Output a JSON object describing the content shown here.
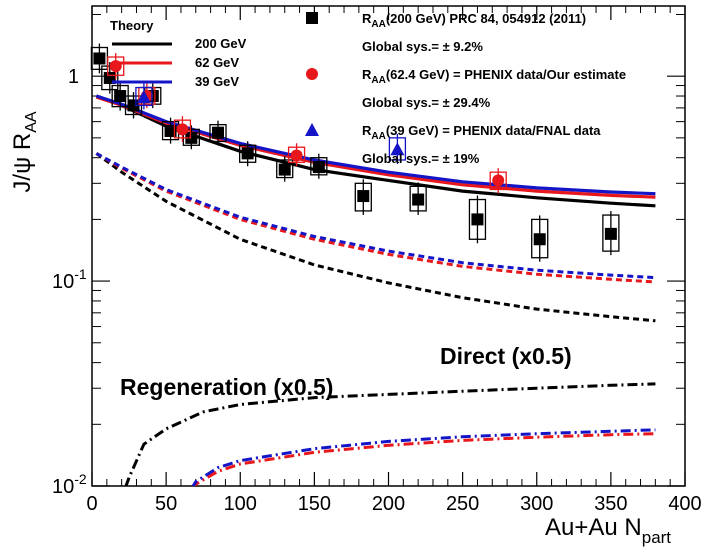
{
  "chart_data": {
    "type": "scatter",
    "xlabel_main": "Au+Au N",
    "xlabel_sub": "part",
    "ylabel_main": "J/ψ R",
    "ylabel_sub": "AA",
    "xlim": [
      0,
      400
    ],
    "ylim": [
      0.01,
      2.2
    ],
    "yscale": "log",
    "grid": false,
    "x_ticks": [
      0,
      50,
      100,
      150,
      200,
      250,
      300,
      350,
      400
    ],
    "y_ticks": [
      {
        "value": 0.01,
        "base": "10",
        "exp": "-2"
      },
      {
        "value": 0.1,
        "base": "10",
        "exp": "-1"
      },
      {
        "value": 1,
        "base": "1",
        "exp": ""
      }
    ],
    "theory_legend": {
      "title": "Theory",
      "entries": [
        {
          "label": "200 GeV",
          "color": "#000000"
        },
        {
          "label": "62 GeV",
          "color": "#e8171b"
        },
        {
          "label": "39 GeV",
          "color": "#1515c8"
        }
      ]
    },
    "data_legend": [
      {
        "marker": "square",
        "color": "#000000",
        "label_main": "R",
        "label_sub": "AA",
        "label_rest": "(200 GeV) PRC 84, 054912 (2011)",
        "sys": "Global sys.= ± 9.2%"
      },
      {
        "marker": "circle",
        "color": "#e8171b",
        "label_main": "R",
        "label_sub": "AA",
        "label_rest": "(62.4 GeV) = PHENIX data/Our estimate",
        "sys": "Global sys.= ± 29.4%"
      },
      {
        "marker": "triangle",
        "color": "#1515c8",
        "label_main": "R",
        "label_sub": "AA",
        "label_rest": "(39 GeV) = PHENIX data/FNAL data",
        "sys": "Global sys.= ± 19%"
      }
    ],
    "annotations": [
      "Direct (x0.5)",
      "Regeneration (x0.5)"
    ],
    "curves": [
      {
        "energy": "200 GeV",
        "component": "total",
        "style": "solid",
        "color": "#000000",
        "points": [
          [
            3,
            0.8
          ],
          [
            20,
            0.72
          ],
          [
            50,
            0.57
          ],
          [
            100,
            0.43
          ],
          [
            150,
            0.35
          ],
          [
            200,
            0.31
          ],
          [
            250,
            0.275
          ],
          [
            300,
            0.255
          ],
          [
            350,
            0.24
          ],
          [
            380,
            0.233
          ]
        ]
      },
      {
        "energy": "62 GeV",
        "component": "total",
        "style": "solid",
        "color": "#e8171b",
        "points": [
          [
            3,
            0.79
          ],
          [
            20,
            0.72
          ],
          [
            50,
            0.59
          ],
          [
            100,
            0.46
          ],
          [
            150,
            0.38
          ],
          [
            200,
            0.33
          ],
          [
            250,
            0.295
          ],
          [
            300,
            0.275
          ],
          [
            350,
            0.262
          ],
          [
            380,
            0.257
          ]
        ]
      },
      {
        "energy": "39 GeV",
        "component": "total",
        "style": "solid",
        "color": "#1515c8",
        "points": [
          [
            3,
            0.8
          ],
          [
            20,
            0.73
          ],
          [
            50,
            0.6
          ],
          [
            100,
            0.47
          ],
          [
            150,
            0.39
          ],
          [
            200,
            0.34
          ],
          [
            250,
            0.305
          ],
          [
            300,
            0.285
          ],
          [
            350,
            0.272
          ],
          [
            380,
            0.267
          ]
        ]
      },
      {
        "energy": "200 GeV",
        "component": "direct",
        "style": "dashed",
        "color": "#000000",
        "points": [
          [
            3,
            0.42
          ],
          [
            20,
            0.34
          ],
          [
            50,
            0.245
          ],
          [
            100,
            0.16
          ],
          [
            150,
            0.12
          ],
          [
            200,
            0.098
          ],
          [
            250,
            0.083
          ],
          [
            300,
            0.073
          ],
          [
            350,
            0.067
          ],
          [
            380,
            0.064
          ]
        ]
      },
      {
        "energy": "62 GeV",
        "component": "direct",
        "style": "dashed",
        "color": "#e8171b",
        "points": [
          [
            3,
            0.42
          ],
          [
            20,
            0.355
          ],
          [
            50,
            0.275
          ],
          [
            100,
            0.2
          ],
          [
            150,
            0.16
          ],
          [
            200,
            0.135
          ],
          [
            250,
            0.118
          ],
          [
            300,
            0.108
          ],
          [
            350,
            0.102
          ],
          [
            380,
            0.099
          ]
        ]
      },
      {
        "energy": "39 GeV",
        "component": "direct",
        "style": "dashed",
        "color": "#1515c8",
        "points": [
          [
            3,
            0.42
          ],
          [
            20,
            0.36
          ],
          [
            50,
            0.28
          ],
          [
            100,
            0.205
          ],
          [
            150,
            0.165
          ],
          [
            200,
            0.14
          ],
          [
            250,
            0.123
          ],
          [
            300,
            0.113
          ],
          [
            350,
            0.107
          ],
          [
            380,
            0.104
          ]
        ]
      },
      {
        "energy": "200 GeV",
        "component": "regeneration",
        "style": "dashdot",
        "color": "#000000",
        "points": [
          [
            18,
            0.008
          ],
          [
            25,
            0.011
          ],
          [
            35,
            0.016
          ],
          [
            50,
            0.019
          ],
          [
            75,
            0.023
          ],
          [
            100,
            0.025
          ],
          [
            150,
            0.027
          ],
          [
            200,
            0.028
          ],
          [
            250,
            0.029
          ],
          [
            300,
            0.03
          ],
          [
            350,
            0.031
          ],
          [
            380,
            0.0315
          ]
        ]
      },
      {
        "energy": "62 GeV",
        "component": "regeneration",
        "style": "dashdot",
        "color": "#e8171b",
        "points": [
          [
            60,
            0.008
          ],
          [
            70,
            0.0102
          ],
          [
            85,
            0.0118
          ],
          [
            100,
            0.0128
          ],
          [
            150,
            0.0146
          ],
          [
            200,
            0.0158
          ],
          [
            250,
            0.0167
          ],
          [
            300,
            0.0173
          ],
          [
            350,
            0.0178
          ],
          [
            380,
            0.018
          ]
        ]
      },
      {
        "energy": "39 GeV",
        "component": "regeneration",
        "style": "dashdot",
        "color": "#1515c8",
        "points": [
          [
            60,
            0.008
          ],
          [
            70,
            0.0105
          ],
          [
            85,
            0.0123
          ],
          [
            100,
            0.0133
          ],
          [
            150,
            0.0152
          ],
          [
            200,
            0.0165
          ],
          [
            250,
            0.0174
          ],
          [
            300,
            0.018
          ],
          [
            350,
            0.0185
          ],
          [
            380,
            0.0188
          ]
        ]
      }
    ],
    "series": [
      {
        "energy": "200 GeV",
        "marker": "square",
        "color": "#000000",
        "points": [
          {
            "x": 5,
            "y": 1.22,
            "ylo": 1.08,
            "yhi": 1.38
          },
          {
            "x": 12,
            "y": 0.98,
            "ylo": 0.86,
            "yhi": 1.12
          },
          {
            "x": 19,
            "y": 0.8,
            "ylo": 0.71,
            "yhi": 0.9
          },
          {
            "x": 28,
            "y": 0.72,
            "ylo": 0.65,
            "yhi": 0.8
          },
          {
            "x": 41,
            "y": 0.8,
            "ylo": 0.73,
            "yhi": 0.88
          },
          {
            "x": 53,
            "y": 0.54,
            "ylo": 0.49,
            "yhi": 0.6
          },
          {
            "x": 67,
            "y": 0.5,
            "ylo": 0.46,
            "yhi": 0.55
          },
          {
            "x": 85,
            "y": 0.53,
            "ylo": 0.48,
            "yhi": 0.58
          },
          {
            "x": 105,
            "y": 0.42,
            "ylo": 0.38,
            "yhi": 0.46
          },
          {
            "x": 130,
            "y": 0.35,
            "ylo": 0.32,
            "yhi": 0.39
          },
          {
            "x": 153,
            "y": 0.36,
            "ylo": 0.33,
            "yhi": 0.4
          },
          {
            "x": 183,
            "y": 0.26,
            "ylo": 0.22,
            "yhi": 0.3
          },
          {
            "x": 220,
            "y": 0.25,
            "ylo": 0.22,
            "yhi": 0.29
          },
          {
            "x": 260,
            "y": 0.2,
            "ylo": 0.16,
            "yhi": 0.25
          },
          {
            "x": 302,
            "y": 0.16,
            "ylo": 0.13,
            "yhi": 0.2
          },
          {
            "x": 350,
            "y": 0.17,
            "ylo": 0.14,
            "yhi": 0.21
          }
        ]
      },
      {
        "energy": "62.4 GeV",
        "marker": "circle",
        "color": "#e8171b",
        "points": [
          {
            "x": 16,
            "y": 1.12,
            "ylo": 1.01,
            "yhi": 1.24
          },
          {
            "x": 37,
            "y": 0.8,
            "ylo": 0.73,
            "yhi": 0.88
          },
          {
            "x": 61,
            "y": 0.55,
            "ylo": 0.5,
            "yhi": 0.61
          },
          {
            "x": 138,
            "y": 0.41,
            "ylo": 0.38,
            "yhi": 0.45
          },
          {
            "x": 274,
            "y": 0.31,
            "ylo": 0.28,
            "yhi": 0.34
          }
        ]
      },
      {
        "energy": "39 GeV",
        "marker": "triangle",
        "color": "#1515c8",
        "points": [
          {
            "x": 35,
            "y": 0.79,
            "ylo": 0.72,
            "yhi": 0.88
          },
          {
            "x": 206,
            "y": 0.44,
            "ylo": 0.39,
            "yhi": 0.5
          }
        ]
      }
    ]
  }
}
